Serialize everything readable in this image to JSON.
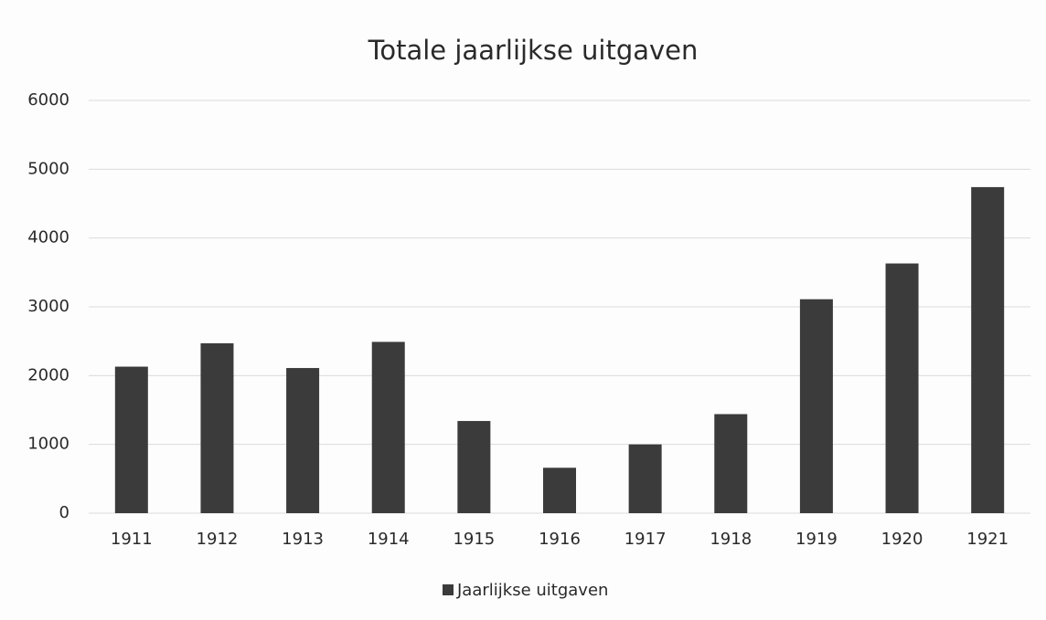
{
  "chart_data": {
    "type": "bar",
    "title": "Totale jaarlijkse uitgaven",
    "categories": [
      "1911",
      "1912",
      "1913",
      "1914",
      "1915",
      "1916",
      "1917",
      "1918",
      "1919",
      "1920",
      "1921"
    ],
    "series": [
      {
        "name": "Jaarlijkse uitgaven",
        "color": "#3b3b3b",
        "values": [
          2130,
          2470,
          2110,
          2490,
          1340,
          660,
          1000,
          1440,
          3110,
          3630,
          4740
        ]
      }
    ],
    "ylim": [
      0,
      6000
    ],
    "yticks": [
      0,
      1000,
      2000,
      3000,
      4000,
      5000,
      6000
    ],
    "grid": true,
    "legend": "bottom"
  }
}
